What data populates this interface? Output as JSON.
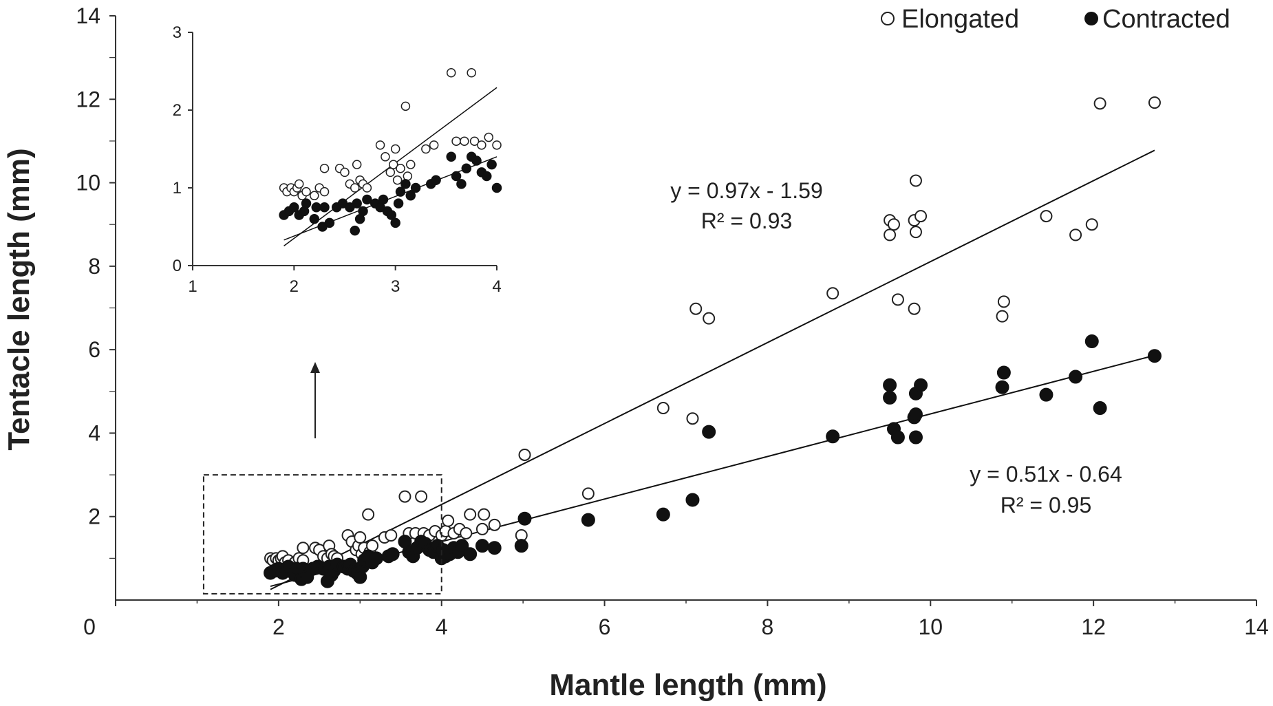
{
  "chart_data": {
    "type": "scatter",
    "xlabel": "Mantle length (mm)",
    "ylabel": "Tentacle length (mm)",
    "xlim": [
      0,
      14
    ],
    "ylim": [
      0,
      14
    ],
    "x_ticks": [
      "0",
      "2",
      "4",
      "6",
      "8",
      "10",
      "12",
      "14"
    ],
    "y_ticks": [
      "2",
      "4",
      "6",
      "8",
      "10",
      "12",
      "14"
    ],
    "legend": {
      "position": "top-right",
      "entries": [
        "Elongated",
        "Contracted"
      ]
    },
    "series": [
      {
        "name": "Elongated",
        "marker": "open-circle",
        "fit": {
          "slope": 0.97,
          "intercept": -1.59,
          "x_range": [
            1.9,
            12.75
          ],
          "equation": "y = 0.97x - 1.59",
          "r2": "R² = 0.93"
        },
        "points": [
          [
            1.9,
            1.0
          ],
          [
            1.93,
            0.95
          ],
          [
            1.97,
            1.0
          ],
          [
            2.0,
            0.95
          ],
          [
            2.03,
            1.0
          ],
          [
            2.05,
            1.05
          ],
          [
            2.08,
            0.9
          ],
          [
            2.12,
            0.95
          ],
          [
            2.2,
            0.9
          ],
          [
            2.25,
            1.0
          ],
          [
            2.3,
            0.95
          ],
          [
            2.3,
            1.25
          ],
          [
            2.45,
            1.25
          ],
          [
            2.5,
            1.2
          ],
          [
            2.55,
            1.05
          ],
          [
            2.6,
            1.0
          ],
          [
            2.62,
            1.3
          ],
          [
            2.65,
            1.1
          ],
          [
            2.68,
            1.05
          ],
          [
            2.72,
            1.0
          ],
          [
            2.85,
            1.55
          ],
          [
            2.9,
            1.4
          ],
          [
            2.95,
            1.2
          ],
          [
            2.98,
            1.3
          ],
          [
            3.0,
            1.5
          ],
          [
            3.02,
            1.1
          ],
          [
            3.05,
            1.25
          ],
          [
            3.1,
            2.05
          ],
          [
            3.12,
            1.15
          ],
          [
            3.15,
            1.3
          ],
          [
            3.3,
            1.5
          ],
          [
            3.38,
            1.55
          ],
          [
            3.55,
            2.48
          ],
          [
            3.6,
            1.6
          ],
          [
            3.68,
            1.6
          ],
          [
            3.75,
            2.48
          ],
          [
            3.78,
            1.6
          ],
          [
            3.85,
            1.55
          ],
          [
            3.92,
            1.65
          ],
          [
            4.0,
            1.55
          ],
          [
            4.05,
            1.65
          ],
          [
            4.08,
            1.9
          ],
          [
            4.15,
            1.6
          ],
          [
            4.22,
            1.7
          ],
          [
            4.3,
            1.6
          ],
          [
            4.35,
            2.05
          ],
          [
            4.5,
            1.7
          ],
          [
            4.52,
            2.05
          ],
          [
            4.65,
            1.8
          ],
          [
            4.98,
            1.55
          ],
          [
            5.02,
            3.48
          ],
          [
            5.8,
            2.55
          ],
          [
            6.72,
            4.6
          ],
          [
            7.08,
            4.35
          ],
          [
            7.12,
            6.98
          ],
          [
            7.28,
            6.75
          ],
          [
            8.8,
            7.35
          ],
          [
            9.5,
            8.75
          ],
          [
            9.5,
            9.1
          ],
          [
            9.55,
            9.0
          ],
          [
            9.6,
            7.2
          ],
          [
            9.8,
            9.1
          ],
          [
            9.8,
            6.98
          ],
          [
            9.82,
            8.82
          ],
          [
            9.82,
            10.05
          ],
          [
            9.88,
            9.2
          ],
          [
            10.88,
            6.8
          ],
          [
            10.9,
            7.15
          ],
          [
            11.42,
            9.2
          ],
          [
            11.78,
            8.75
          ],
          [
            11.98,
            9.0
          ],
          [
            12.08,
            11.9
          ],
          [
            12.75,
            11.92
          ]
        ]
      },
      {
        "name": "Contracted",
        "marker": "filled-circle",
        "fit": {
          "slope": 0.51,
          "intercept": -0.64,
          "x_range": [
            1.9,
            12.75
          ],
          "equation": "y = 0.51x - 0.64",
          "r2": "R² = 0.95"
        },
        "points": [
          [
            1.9,
            0.65
          ],
          [
            1.95,
            0.7
          ],
          [
            2.0,
            0.75
          ],
          [
            2.05,
            0.65
          ],
          [
            2.1,
            0.7
          ],
          [
            2.12,
            0.8
          ],
          [
            2.2,
            0.6
          ],
          [
            2.22,
            0.75
          ],
          [
            2.28,
            0.5
          ],
          [
            2.3,
            0.75
          ],
          [
            2.35,
            0.55
          ],
          [
            2.42,
            0.75
          ],
          [
            2.48,
            0.8
          ],
          [
            2.55,
            0.75
          ],
          [
            2.6,
            0.45
          ],
          [
            2.62,
            0.8
          ],
          [
            2.65,
            0.6
          ],
          [
            2.68,
            0.7
          ],
          [
            2.72,
            0.85
          ],
          [
            2.8,
            0.8
          ],
          [
            2.85,
            0.75
          ],
          [
            2.88,
            0.85
          ],
          [
            2.92,
            0.7
          ],
          [
            2.96,
            0.65
          ],
          [
            3.0,
            0.55
          ],
          [
            3.03,
            0.8
          ],
          [
            3.05,
            0.95
          ],
          [
            3.1,
            1.05
          ],
          [
            3.15,
            0.9
          ],
          [
            3.2,
            1.0
          ],
          [
            3.35,
            1.05
          ],
          [
            3.4,
            1.1
          ],
          [
            3.55,
            1.4
          ],
          [
            3.6,
            1.15
          ],
          [
            3.65,
            1.05
          ],
          [
            3.7,
            1.25
          ],
          [
            3.75,
            1.4
          ],
          [
            3.8,
            1.35
          ],
          [
            3.85,
            1.2
          ],
          [
            3.9,
            1.15
          ],
          [
            3.95,
            1.3
          ],
          [
            4.0,
            1.0
          ],
          [
            4.02,
            1.2
          ],
          [
            4.05,
            1.05
          ],
          [
            4.1,
            1.1
          ],
          [
            4.15,
            1.25
          ],
          [
            4.2,
            1.15
          ],
          [
            4.25,
            1.3
          ],
          [
            4.35,
            1.1
          ],
          [
            4.5,
            1.3
          ],
          [
            4.65,
            1.25
          ],
          [
            4.98,
            1.3
          ],
          [
            5.02,
            1.95
          ],
          [
            5.8,
            1.92
          ],
          [
            6.72,
            2.05
          ],
          [
            7.08,
            2.4
          ],
          [
            7.28,
            4.03
          ],
          [
            8.8,
            3.92
          ],
          [
            9.5,
            4.85
          ],
          [
            9.5,
            5.15
          ],
          [
            9.55,
            4.1
          ],
          [
            9.6,
            3.9
          ],
          [
            9.8,
            4.38
          ],
          [
            9.82,
            4.95
          ],
          [
            9.82,
            4.45
          ],
          [
            9.82,
            3.9
          ],
          [
            9.88,
            5.15
          ],
          [
            10.88,
            5.1
          ],
          [
            10.9,
            5.45
          ],
          [
            11.42,
            4.92
          ],
          [
            11.78,
            5.35
          ],
          [
            11.98,
            6.2
          ],
          [
            12.08,
            4.6
          ],
          [
            12.75,
            5.85
          ]
        ]
      }
    ],
    "inset": {
      "description": "zoom of boxed region",
      "box_data": {
        "x": [
          1.0,
          4.0
        ],
        "y": [
          0,
          3.0
        ]
      },
      "xlim": [
        1,
        4
      ],
      "ylim": [
        0,
        3
      ],
      "x_ticks": [
        "1",
        "2",
        "3",
        "4"
      ],
      "y_ticks": [
        "0",
        "1",
        "2",
        "3"
      ]
    }
  }
}
